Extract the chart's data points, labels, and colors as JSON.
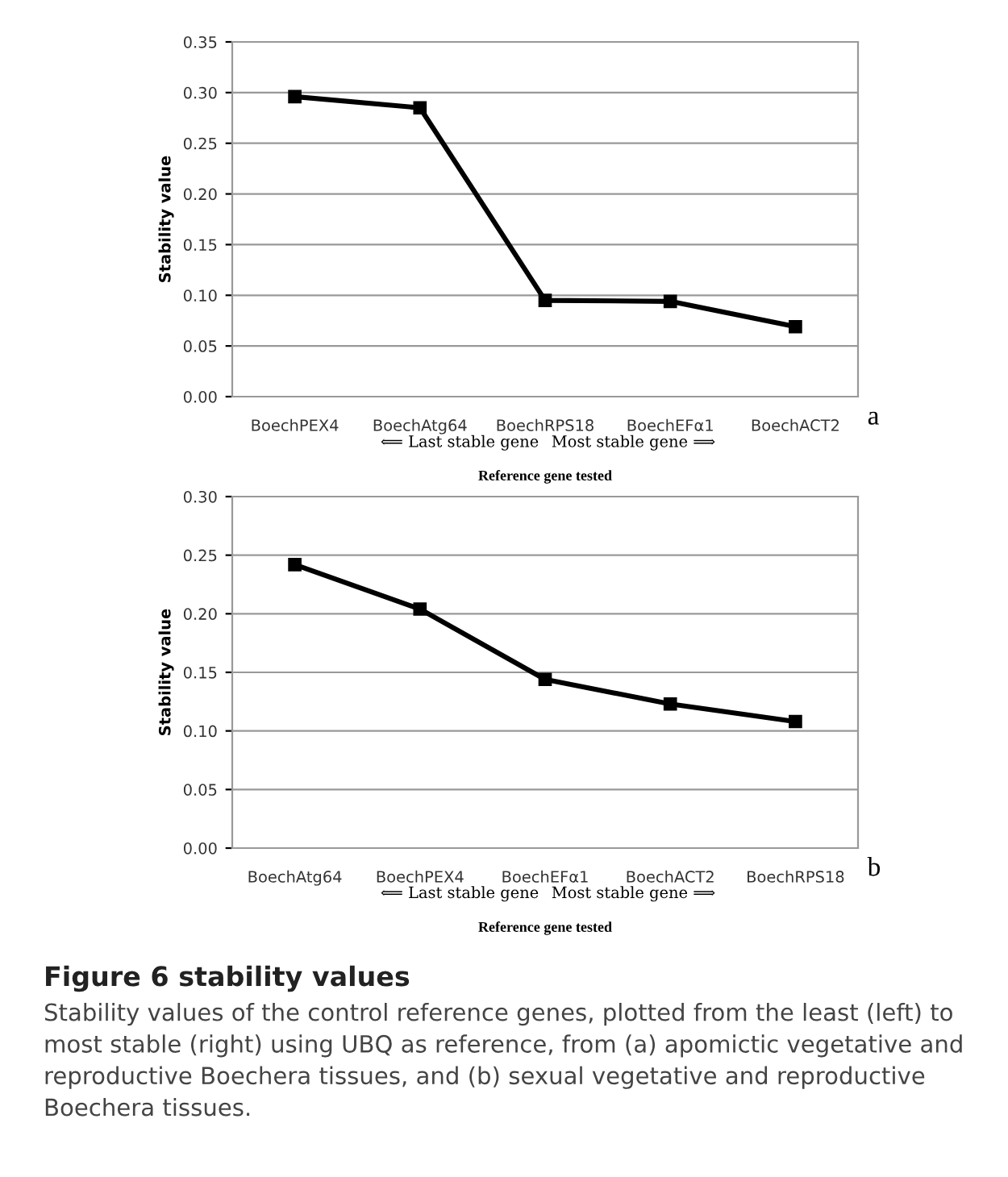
{
  "chart_data": [
    {
      "type": "line",
      "categories": [
        "BoechPEX4",
        "BoechAtg64",
        "BoechRPS18",
        "BoechEFα1",
        "BoechACT2"
      ],
      "series": [
        {
          "color": "#000000",
          "values": [
            0.296,
            0.285,
            0.095,
            0.094,
            0.069
          ]
        }
      ],
      "ylabel": "Stability value",
      "xlabel": "Reference gene tested",
      "ylim": [
        0,
        0.35
      ],
      "yticks": [
        {
          "value": 0,
          "label": "0.00"
        },
        {
          "value": 0.05,
          "label": "0.05"
        },
        {
          "value": 0.1,
          "label": "0.10"
        },
        {
          "value": 0.15,
          "label": "0.15"
        },
        {
          "value": 0.2,
          "label": "0.20"
        },
        {
          "value": 0.25,
          "label": "0.25"
        },
        {
          "value": 0.3,
          "label": "0.30"
        },
        {
          "value": 0.35,
          "label": "0.35"
        }
      ],
      "grid": "y",
      "marker": "square",
      "line_style": "solid",
      "annotations": [
        "a",
        "⟸ Last stable gene",
        "Most stable gene ⟹"
      ]
    },
    {
      "type": "line",
      "categories": [
        "BoechAtg64",
        "BoechPEX4",
        "BoechEFα1",
        "BoechACT2",
        "BoechRPS18"
      ],
      "series": [
        {
          "color": "#000000",
          "values": [
            0.242,
            0.204,
            0.144,
            0.123,
            0.108
          ]
        }
      ],
      "ylabel": "Stability value",
      "xlabel": "Reference gene tested",
      "ylim": [
        0,
        0.3
      ],
      "yticks": [
        {
          "value": 0,
          "label": "0.00"
        },
        {
          "value": 0.05,
          "label": "0.05"
        },
        {
          "value": 0.1,
          "label": "0.10"
        },
        {
          "value": 0.15,
          "label": "0.15"
        },
        {
          "value": 0.2,
          "label": "0.20"
        },
        {
          "value": 0.25,
          "label": "0.25"
        },
        {
          "value": 0.3,
          "label": "0.30"
        }
      ],
      "grid": "y",
      "marker": "square",
      "line_style": "solid",
      "annotations": [
        "b",
        "⟸ Last stable gene",
        "Most stable gene ⟹",
        "Figure 6 stability values",
        "Stability values of the control reference genes, plotted from the least (left) to most stable (right) using UBQ as reference, from (a) apomictic vegetative and reproductive Boechera tissues, and (b) sexual vegetative and reproductive Boechera tissues."
      ]
    }
  ]
}
